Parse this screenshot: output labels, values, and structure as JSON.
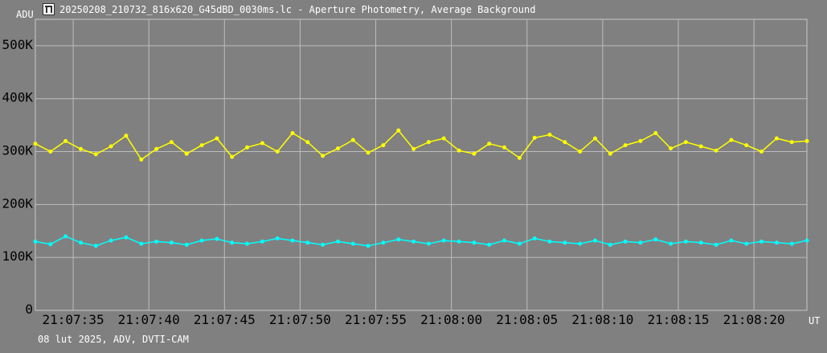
{
  "window": {
    "title": "20250208_210732_816x620_G45dBD_0030ms.lc - Aperture Photometry, Average Background",
    "icon": "app-logo-icon"
  },
  "footer": "08 lut 2025, ADV, DVTI-CAM",
  "chart_data": {
    "type": "line",
    "title": "20250208_210732_816x620_G45dBD_0030ms.lc - Aperture Photometry, Average Background",
    "ylabel": "ADU",
    "xlabel": "UT",
    "ylim": [
      0,
      550000
    ],
    "xlim": [
      "21:07:32.5",
      "21:08:23.5"
    ],
    "grid": true,
    "y_ticks": [
      {
        "value": 0,
        "label": "0"
      },
      {
        "value": 100000,
        "label": "100K"
      },
      {
        "value": 200000,
        "label": "200K"
      },
      {
        "value": 300000,
        "label": "300K"
      },
      {
        "value": 400000,
        "label": "400K"
      },
      {
        "value": 500000,
        "label": "500K"
      }
    ],
    "x_ticks": [
      {
        "value": "21:07:35",
        "label": "21:07:35"
      },
      {
        "value": "21:07:40",
        "label": "21:07:40"
      },
      {
        "value": "21:07:45",
        "label": "21:07:45"
      },
      {
        "value": "21:07:50",
        "label": "21:07:50"
      },
      {
        "value": "21:07:55",
        "label": "21:07:55"
      },
      {
        "value": "21:08:00",
        "label": "21:08:00"
      },
      {
        "value": "21:08:05",
        "label": "21:08:05"
      },
      {
        "value": "21:08:10",
        "label": "21:08:10"
      },
      {
        "value": "21:08:15",
        "label": "21:08:15"
      },
      {
        "value": "21:08:20",
        "label": "21:08:20"
      }
    ],
    "series": [
      {
        "color": "#ffff00",
        "x": [
          "21:07:32.5",
          "21:07:33.5",
          "21:07:34.5",
          "21:07:35.5",
          "21:07:36.5",
          "21:07:37.5",
          "21:07:38.5",
          "21:07:39.5",
          "21:07:40.5",
          "21:07:41.5",
          "21:07:42.5",
          "21:07:43.5",
          "21:07:44.5",
          "21:07:45.5",
          "21:07:46.5",
          "21:07:47.5",
          "21:07:48.5",
          "21:07:49.5",
          "21:07:50.5",
          "21:07:51.5",
          "21:07:52.5",
          "21:07:53.5",
          "21:07:54.5",
          "21:07:55.5",
          "21:07:56.5",
          "21:07:57.5",
          "21:07:58.5",
          "21:07:59.5",
          "21:08:00.5",
          "21:08:01.5",
          "21:08:02.5",
          "21:08:03.5",
          "21:08:04.5",
          "21:08:05.5",
          "21:08:06.5",
          "21:08:07.5",
          "21:08:08.5",
          "21:08:09.5",
          "21:08:10.5",
          "21:08:11.5",
          "21:08:12.5",
          "21:08:13.5",
          "21:08:14.5",
          "21:08:15.5",
          "21:08:16.5",
          "21:08:17.5",
          "21:08:18.5",
          "21:08:19.5",
          "21:08:20.5",
          "21:08:21.5",
          "21:08:22.5",
          "21:08:23.5"
        ],
        "y": [
          315000,
          300000,
          320000,
          305000,
          295000,
          310000,
          330000,
          285000,
          305000,
          318000,
          296000,
          312000,
          325000,
          290000,
          308000,
          316000,
          300000,
          335000,
          318000,
          292000,
          306000,
          322000,
          298000,
          312000,
          340000,
          305000,
          318000,
          325000,
          302000,
          296000,
          315000,
          308000,
          288000,
          326000,
          332000,
          318000,
          300000,
          325000,
          296000,
          312000,
          320000,
          335000,
          306000,
          318000,
          310000,
          302000,
          322000,
          312000,
          300000,
          325000,
          318000,
          320000
        ]
      },
      {
        "color": "#00ffff",
        "x": [
          "21:07:32.5",
          "21:07:33.5",
          "21:07:34.5",
          "21:07:35.5",
          "21:07:36.5",
          "21:07:37.5",
          "21:07:38.5",
          "21:07:39.5",
          "21:07:40.5",
          "21:07:41.5",
          "21:07:42.5",
          "21:07:43.5",
          "21:07:44.5",
          "21:07:45.5",
          "21:07:46.5",
          "21:07:47.5",
          "21:07:48.5",
          "21:07:49.5",
          "21:07:50.5",
          "21:07:51.5",
          "21:07:52.5",
          "21:07:53.5",
          "21:07:54.5",
          "21:07:55.5",
          "21:07:56.5",
          "21:07:57.5",
          "21:07:58.5",
          "21:07:59.5",
          "21:08:00.5",
          "21:08:01.5",
          "21:08:02.5",
          "21:08:03.5",
          "21:08:04.5",
          "21:08:05.5",
          "21:08:06.5",
          "21:08:07.5",
          "21:08:08.5",
          "21:08:09.5",
          "21:08:10.5",
          "21:08:11.5",
          "21:08:12.5",
          "21:08:13.5",
          "21:08:14.5",
          "21:08:15.5",
          "21:08:16.5",
          "21:08:17.5",
          "21:08:18.5",
          "21:08:19.5",
          "21:08:20.5",
          "21:08:21.5",
          "21:08:22.5",
          "21:08:23.5"
        ],
        "y": [
          130000,
          125000,
          140000,
          128000,
          122000,
          132000,
          138000,
          126000,
          130000,
          128000,
          124000,
          132000,
          135000,
          128000,
          126000,
          130000,
          136000,
          132000,
          128000,
          124000,
          130000,
          126000,
          122000,
          128000,
          134000,
          130000,
          126000,
          132000,
          130000,
          128000,
          124000,
          132000,
          126000,
          136000,
          130000,
          128000,
          126000,
          132000,
          124000,
          130000,
          128000,
          134000,
          126000,
          130000,
          128000,
          124000,
          132000,
          126000,
          130000,
          128000,
          126000,
          132000
        ]
      }
    ]
  }
}
